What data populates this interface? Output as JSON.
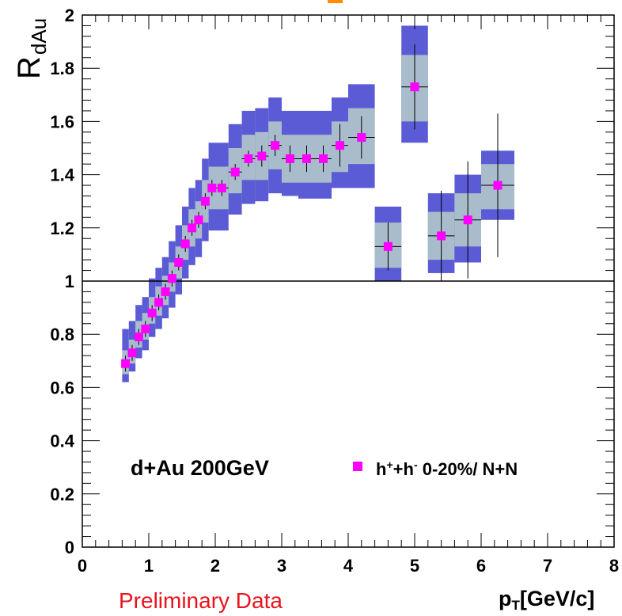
{
  "chart_data": {
    "type": "scatter",
    "ylabel": "R",
    "ylabel_sub": "dAu",
    "xlabel": "p",
    "xlabel_sub": "T",
    "xlabel_unit": "[GeV/c]",
    "xlim": [
      0,
      8
    ],
    "ylim": [
      0,
      2
    ],
    "x_ticks": [
      0,
      1,
      2,
      3,
      4,
      5,
      6,
      7,
      8
    ],
    "y_ticks": [
      0,
      0.2,
      0.4,
      0.6,
      0.8,
      1,
      1.2,
      1.4,
      1.6,
      1.8,
      2
    ],
    "x_tick_labels": [
      "0",
      "1",
      "2",
      "3",
      "4",
      "5",
      "6",
      "7",
      "8"
    ],
    "y_tick_labels": [
      "0",
      "0.2",
      "0.4",
      "0.6",
      "0.8",
      "1",
      "1.2",
      "1.4",
      "1.6",
      "1.8",
      "2"
    ],
    "reference_line_y": 1,
    "annotation": "d+Au 200GeV",
    "footer_note": "Preliminary Data",
    "colors": {
      "marker": "#ff00ff",
      "outer_band": "#5b5bd6",
      "inner_band": "#a9bccb",
      "footer_note": "#e8141e",
      "title_fragment": "#ff8c00"
    },
    "series": [
      {
        "legend": {
          "h": "h",
          "plus": "+",
          "op": "+h",
          "minus": "-",
          "rest": " 0-20%/ N+N"
        },
        "points": [
          {
            "x": 0.65,
            "y": 0.69,
            "err": 0.03,
            "xw": 0.05,
            "in": [
              0.65,
              0.74
            ],
            "out": [
              0.62,
              0.82
            ]
          },
          {
            "x": 0.75,
            "y": 0.73,
            "err": 0.03,
            "xw": 0.05,
            "in": [
              0.69,
              0.78
            ],
            "out": [
              0.66,
              0.85
            ]
          },
          {
            "x": 0.85,
            "y": 0.79,
            "err": 0.03,
            "xw": 0.05,
            "in": [
              0.75,
              0.85
            ],
            "out": [
              0.71,
              0.91
            ]
          },
          {
            "x": 0.95,
            "y": 0.82,
            "err": 0.03,
            "xw": 0.05,
            "in": [
              0.78,
              0.88
            ],
            "out": [
              0.74,
              0.94
            ]
          },
          {
            "x": 1.05,
            "y": 0.88,
            "err": 0.03,
            "xw": 0.05,
            "in": [
              0.84,
              0.94
            ],
            "out": [
              0.79,
              1.01
            ]
          },
          {
            "x": 1.15,
            "y": 0.92,
            "err": 0.03,
            "xw": 0.05,
            "in": [
              0.87,
              0.98
            ],
            "out": [
              0.82,
              1.05
            ]
          },
          {
            "x": 1.25,
            "y": 0.96,
            "err": 0.03,
            "xw": 0.05,
            "in": [
              0.91,
              1.02
            ],
            "out": [
              0.86,
              1.09
            ]
          },
          {
            "x": 1.35,
            "y": 1.01,
            "err": 0.03,
            "xw": 0.05,
            "in": [
              0.96,
              1.07
            ],
            "out": [
              0.9,
              1.15
            ]
          },
          {
            "x": 1.45,
            "y": 1.07,
            "err": 0.03,
            "xw": 0.05,
            "in": [
              1.01,
              1.13
            ],
            "out": [
              0.95,
              1.21
            ]
          },
          {
            "x": 1.55,
            "y": 1.14,
            "err": 0.03,
            "xw": 0.05,
            "in": [
              1.08,
              1.21
            ],
            "out": [
              1.01,
              1.28
            ]
          },
          {
            "x": 1.65,
            "y": 1.2,
            "err": 0.03,
            "xw": 0.05,
            "in": [
              1.13,
              1.27
            ],
            "out": [
              1.06,
              1.35
            ]
          },
          {
            "x": 1.75,
            "y": 1.23,
            "err": 0.03,
            "xw": 0.05,
            "in": [
              1.16,
              1.3
            ],
            "out": [
              1.09,
              1.38
            ]
          },
          {
            "x": 1.85,
            "y": 1.3,
            "err": 0.03,
            "xw": 0.05,
            "in": [
              1.22,
              1.38
            ],
            "out": [
              1.15,
              1.46
            ]
          },
          {
            "x": 1.95,
            "y": 1.35,
            "err": 0.03,
            "xw": 0.05,
            "in": [
              1.27,
              1.43
            ],
            "out": [
              1.19,
              1.52
            ]
          },
          {
            "x": 2.1,
            "y": 1.35,
            "err": 0.03,
            "xw": 0.1,
            "in": [
              1.27,
              1.43
            ],
            "out": [
              1.19,
              1.52
            ]
          },
          {
            "x": 2.3,
            "y": 1.41,
            "err": 0.03,
            "xw": 0.1,
            "in": [
              1.33,
              1.5
            ],
            "out": [
              1.25,
              1.59
            ]
          },
          {
            "x": 2.5,
            "y": 1.46,
            "err": 0.03,
            "xw": 0.1,
            "in": [
              1.38,
              1.55
            ],
            "out": [
              1.29,
              1.64
            ]
          },
          {
            "x": 2.7,
            "y": 1.47,
            "err": 0.04,
            "xw": 0.1,
            "in": [
              1.38,
              1.56
            ],
            "out": [
              1.3,
              1.65
            ]
          },
          {
            "x": 2.9,
            "y": 1.51,
            "err": 0.04,
            "xw": 0.1,
            "in": [
              1.42,
              1.6
            ],
            "out": [
              1.33,
              1.69
            ]
          },
          {
            "x": 3.125,
            "y": 1.46,
            "err": 0.05,
            "xw": 0.125,
            "in": [
              1.37,
              1.55
            ],
            "out": [
              1.32,
              1.64
            ]
          },
          {
            "x": 3.375,
            "y": 1.46,
            "err": 0.05,
            "xw": 0.125,
            "in": [
              1.37,
              1.55
            ],
            "out": [
              1.31,
              1.64
            ]
          },
          {
            "x": 3.625,
            "y": 1.46,
            "err": 0.05,
            "xw": 0.125,
            "in": [
              1.37,
              1.55
            ],
            "out": [
              1.31,
              1.64
            ]
          },
          {
            "x": 3.875,
            "y": 1.51,
            "err": 0.08,
            "xw": 0.125,
            "in": [
              1.41,
              1.6
            ],
            "out": [
              1.35,
              1.69
            ]
          },
          {
            "x": 4.2,
            "y": 1.54,
            "err": 0.08,
            "xw": 0.2,
            "in": [
              1.44,
              1.65
            ],
            "out": [
              1.35,
              1.74
            ]
          },
          {
            "x": 4.6,
            "y": 1.13,
            "err": 0.09,
            "xw": 0.2,
            "in": [
              1.05,
              1.22
            ],
            "out": [
              1.0,
              1.28
            ]
          },
          {
            "x": 5.0,
            "y": 1.73,
            "err": 0.16,
            "xw": 0.2,
            "in": [
              1.6,
              1.85
            ],
            "out": [
              1.52,
              1.96
            ]
          },
          {
            "x": 5.4,
            "y": 1.17,
            "err": 0.17,
            "xw": 0.2,
            "in": [
              1.08,
              1.26
            ],
            "out": [
              1.03,
              1.33
            ]
          },
          {
            "x": 5.8,
            "y": 1.23,
            "err": 0.22,
            "xw": 0.2,
            "in": [
              1.13,
              1.33
            ],
            "out": [
              1.07,
              1.4
            ]
          },
          {
            "x": 6.25,
            "y": 1.36,
            "err": 0.27,
            "xw": 0.25,
            "in": [
              1.27,
              1.44
            ],
            "out": [
              1.23,
              1.49
            ]
          }
        ]
      }
    ]
  }
}
